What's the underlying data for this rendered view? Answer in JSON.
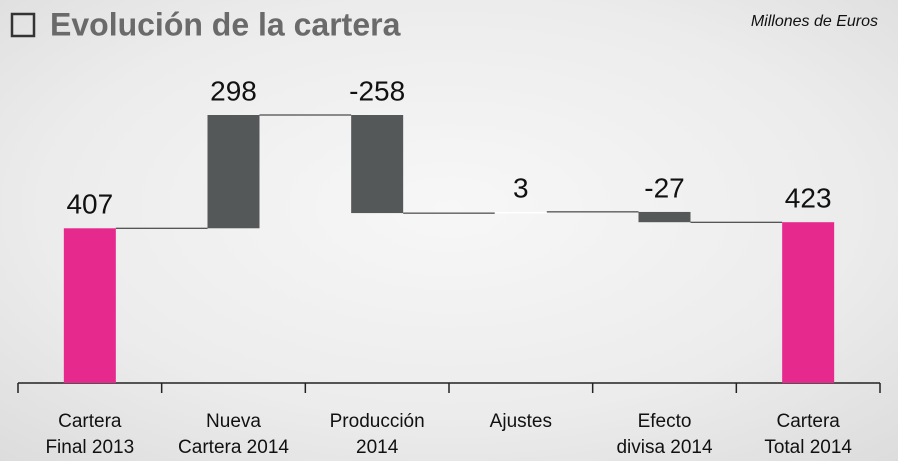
{
  "chart_data": {
    "type": "waterfall",
    "title": "Evolución de la cartera",
    "subtitle": "Millones de Euros",
    "categories": [
      [
        "Cartera",
        "Final 2013"
      ],
      [
        "Nueva",
        "Cartera 2014"
      ],
      [
        "Producción",
        "2014"
      ],
      [
        "Ajustes"
      ],
      [
        "Efecto",
        "divisa 2014"
      ],
      [
        "Cartera",
        "Total 2014"
      ]
    ],
    "values": [
      407,
      298,
      -258,
      3,
      -27,
      423
    ],
    "totals": [
      true,
      false,
      false,
      false,
      false,
      true
    ],
    "colors": [
      "#e6298c",
      "#555858",
      "#555858",
      "#ffffff",
      "#555858",
      "#e6298c"
    ]
  }
}
